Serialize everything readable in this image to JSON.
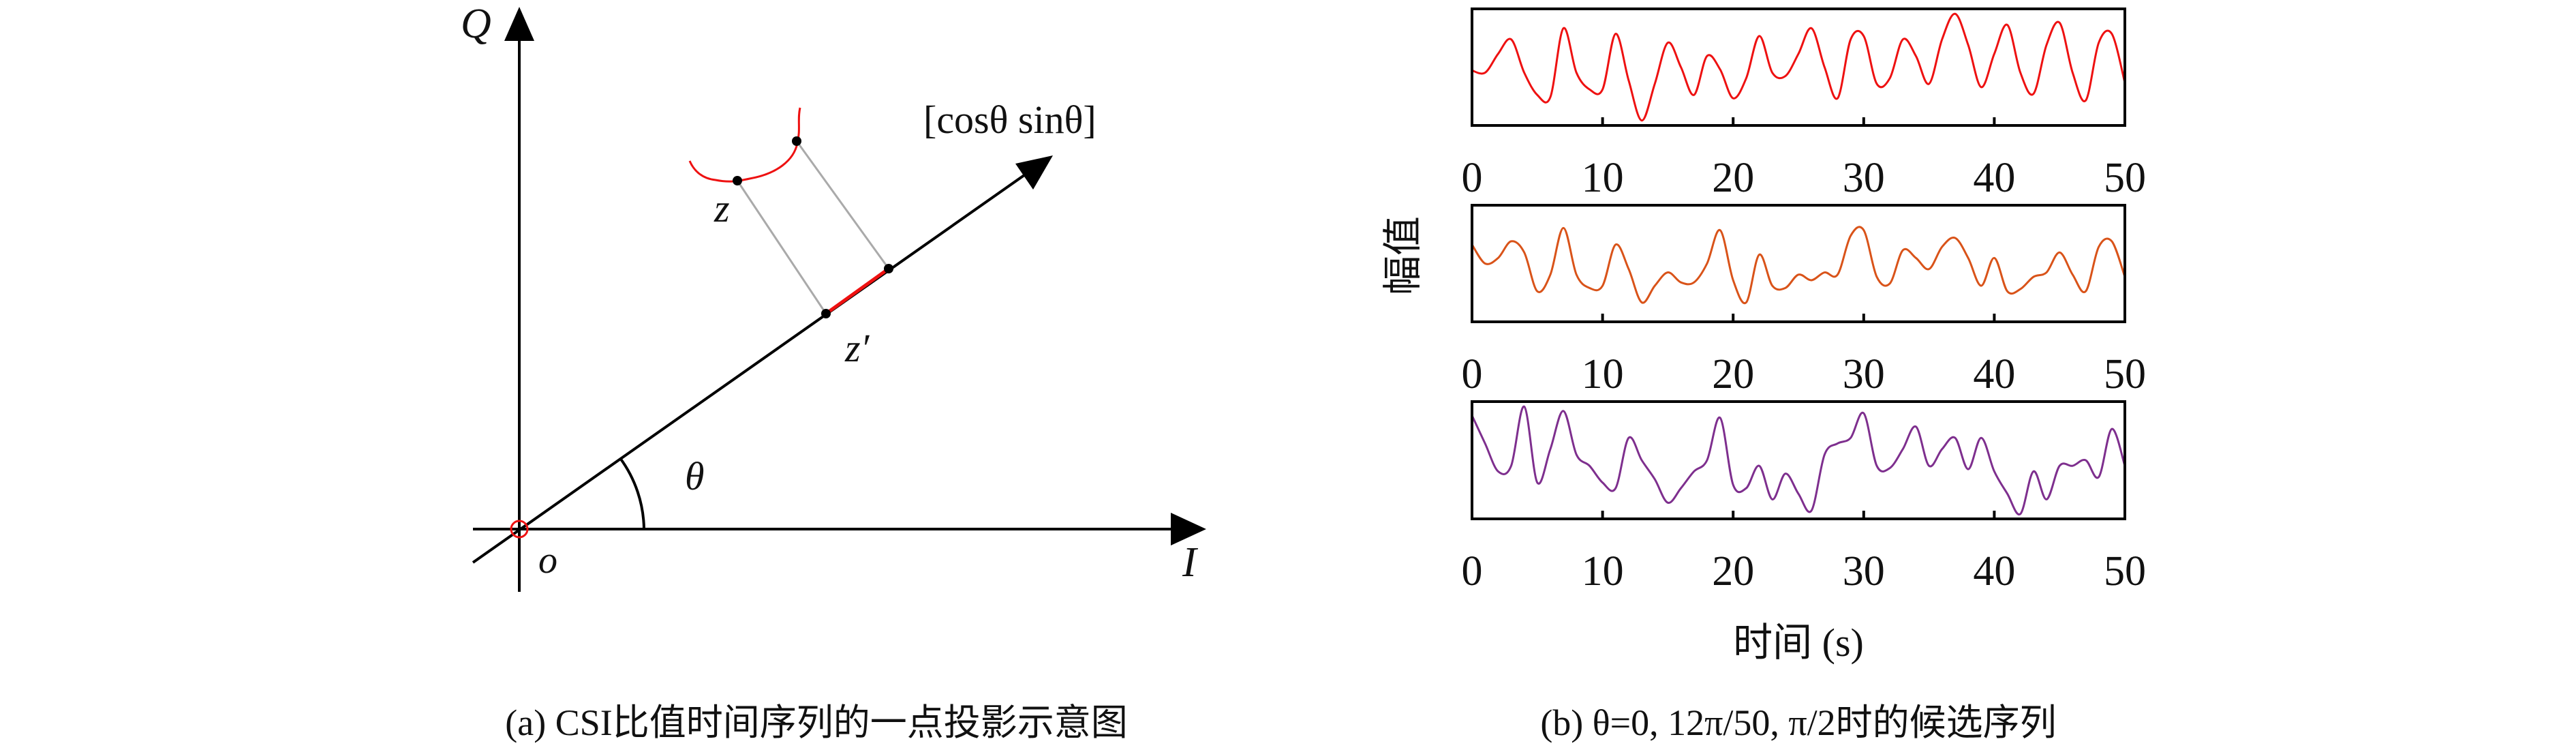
{
  "panel_a": {
    "q_label": "Q",
    "i_label": "I",
    "origin_label": "o",
    "vector_label": "[cosθ sinθ]",
    "z_label": "z",
    "z_prime_label": "z′",
    "theta_label": "θ",
    "caption": "(a) CSI比值时间序列的一点投影示意图",
    "colors": {
      "curve": "#ee1111",
      "projection": "#aaaaaa",
      "axis": "#000000"
    }
  },
  "panel_b": {
    "ylabel": "幅值",
    "xlabel": "时间 (s)",
    "caption": "(b) θ=0, 12π/50, π/2时的候选序列"
  },
  "chart_data": [
    {
      "type": "line",
      "name": "theta=0",
      "color": "#ee1111",
      "xlim": [
        0,
        50
      ],
      "xticks": [
        "0",
        "10",
        "20",
        "30",
        "40",
        "50"
      ],
      "xlabel": "",
      "ylabel": "",
      "x_step": 1,
      "values": [
        0.47,
        0.45,
        0.62,
        0.75,
        0.45,
        0.25,
        0.23,
        0.85,
        0.45,
        0.3,
        0.3,
        0.8,
        0.38,
        0.02,
        0.35,
        0.72,
        0.5,
        0.25,
        0.6,
        0.48,
        0.22,
        0.4,
        0.78,
        0.45,
        0.42,
        0.62,
        0.85,
        0.5,
        0.22,
        0.75,
        0.78,
        0.35,
        0.4,
        0.75,
        0.6,
        0.35,
        0.75,
        0.98,
        0.7,
        0.32,
        0.62,
        0.88,
        0.45,
        0.26,
        0.7,
        0.9,
        0.45,
        0.2,
        0.72,
        0.8,
        0.36
      ]
    },
    {
      "type": "line",
      "name": "theta=12pi/50",
      "color": "#d95319",
      "xlim": [
        0,
        50
      ],
      "xticks": [
        "0",
        "10",
        "20",
        "30",
        "40",
        "50"
      ],
      "xlabel": "",
      "ylabel": "",
      "x_step": 1,
      "values": [
        0.67,
        0.5,
        0.55,
        0.7,
        0.6,
        0.25,
        0.4,
        0.82,
        0.4,
        0.28,
        0.3,
        0.67,
        0.45,
        0.15,
        0.3,
        0.42,
        0.33,
        0.33,
        0.5,
        0.8,
        0.35,
        0.15,
        0.58,
        0.3,
        0.28,
        0.4,
        0.35,
        0.42,
        0.4,
        0.75,
        0.8,
        0.38,
        0.32,
        0.62,
        0.55,
        0.45,
        0.65,
        0.73,
        0.55,
        0.3,
        0.55,
        0.25,
        0.27,
        0.38,
        0.42,
        0.6,
        0.4,
        0.25,
        0.65,
        0.7,
        0.38
      ]
    },
    {
      "type": "line",
      "name": "theta=pi/2",
      "color": "#7e2f8e",
      "xlim": [
        0,
        50
      ],
      "xticks": [
        "0",
        "10",
        "20",
        "30",
        "40",
        "50"
      ],
      "xlabel": "",
      "ylabel": "",
      "x_step": 1,
      "values": [
        0.9,
        0.65,
        0.4,
        0.45,
        0.98,
        0.3,
        0.6,
        0.94,
        0.55,
        0.45,
        0.3,
        0.25,
        0.7,
        0.5,
        0.33,
        0.12,
        0.25,
        0.4,
        0.5,
        0.88,
        0.28,
        0.25,
        0.45,
        0.15,
        0.38,
        0.2,
        0.05,
        0.55,
        0.65,
        0.7,
        0.92,
        0.45,
        0.43,
        0.6,
        0.8,
        0.45,
        0.6,
        0.7,
        0.42,
        0.7,
        0.4,
        0.2,
        0.02,
        0.4,
        0.15,
        0.45,
        0.45,
        0.5,
        0.35,
        0.78,
        0.45
      ]
    }
  ]
}
